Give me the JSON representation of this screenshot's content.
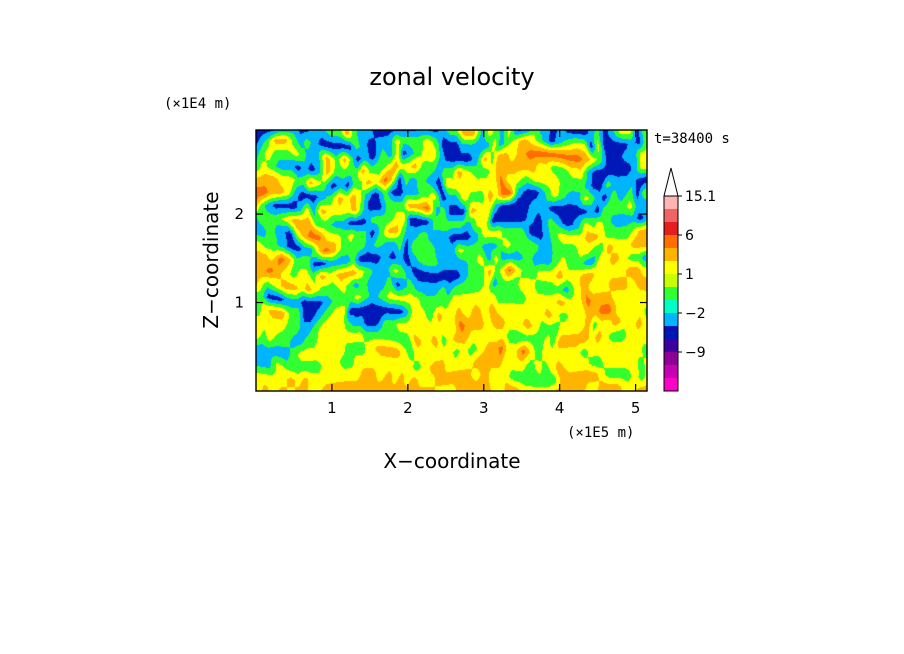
{
  "chart_data": {
    "type": "heatmap",
    "title": "zonal velocity",
    "xlabel": "X−coordinate",
    "ylabel": "Z−coordinate",
    "x_unit": "(×1E5 m)",
    "y_unit": "(×1E4 m)",
    "time_label": "t=38400 s",
    "xlim": [
      0,
      5.15
    ],
    "ylim": [
      0,
      2.95
    ],
    "x_ticks": [
      1,
      2,
      3,
      4,
      5
    ],
    "y_ticks": [
      1,
      2
    ],
    "colorbar": {
      "labels": [
        "15.1",
        "6",
        "1",
        "−2",
        "−9"
      ],
      "label_values": [
        15.1,
        6,
        1,
        -2,
        -9
      ],
      "levels_low_to_high": [
        -15,
        -12,
        -9,
        -6,
        -4,
        -2,
        -1,
        0,
        1,
        2,
        4,
        6,
        9,
        12,
        15.1
      ],
      "colors_low_to_high": [
        "#ff00c8",
        "#c800b4",
        "#8c0096",
        "#3c00a0",
        "#0014b4",
        "#00b4ff",
        "#00ffc8",
        "#32ff32",
        "#c8ff00",
        "#ffff00",
        "#ffb400",
        "#ff6e00",
        "#e61e1e",
        "#f06464",
        "#ffb4b4",
        "#ffffff"
      ]
    },
    "field_rows_top_to_bottom": [
      "0000010011224211000000001224413213002110100012013302",
      "0124421210000210113222320001111312343210123303000102",
      "1232232114242010213012331000014244345555555432001133",
      "2321101014222242234334221224322344444332233100000133",
      "4443322432010224353021210333333353323333222100211100",
      "5544310001243431020011230113224355100123211321021202",
      "4210001314333420022244512000433100001110000010222311",
      "1222344422110002223300022222133000001012101323211101",
      "1121034553323220244211211100013332220012333443222344",
      "3221001135422221211202221113221123222112223322433444",
      "4435422200111200010101221111231311121112322113343221",
      "4454323324344432113210000001224235322333433443333443",
      "4323443432232121120121112122223122233222213433344344",
      "2200110001222321233333222233333322223333433544433333",
      "2344220012330000000013324334343433333343233445533332",
      "3333221123332110022333333335443443343222333423343343",
      "3232211223333332222224342344333332222232444434322333",
      "1111123333332223444323333323234453353233333233333332",
      "1113222223322333333332344333344443332323433322333323",
      "3333434333333344343434334444434333222222444443222323",
      "3434344334444444444444443334444334433334444334443344"
    ],
    "field_index_colors": [
      "#0018b8",
      "#00b4ff",
      "#32ff32",
      "#ffff00",
      "#ffb400",
      "#ff6e00"
    ]
  }
}
